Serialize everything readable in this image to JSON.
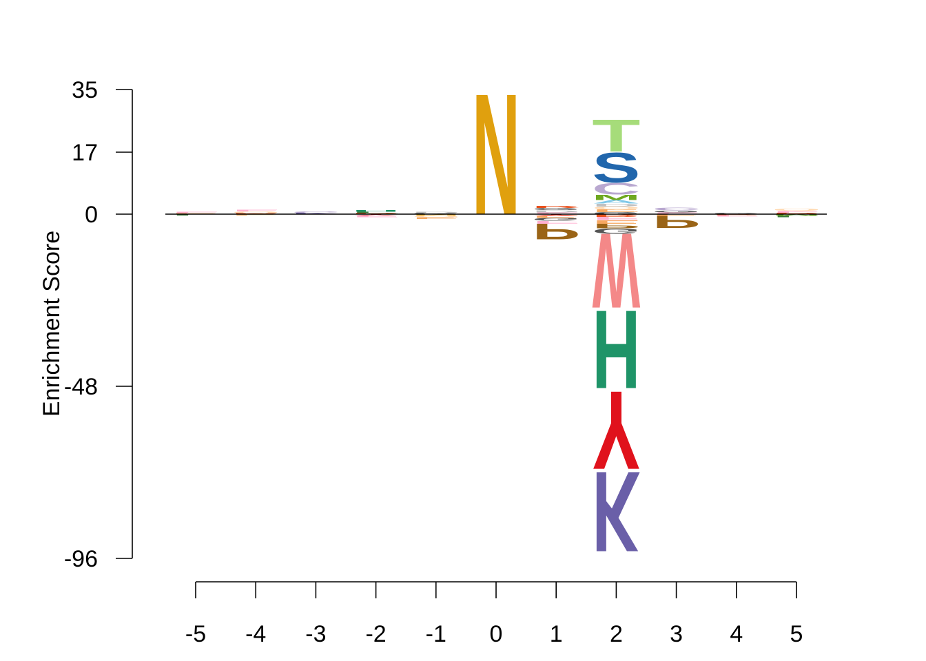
{
  "chart_data": {
    "type": "sequence-logo",
    "ylabel": "Enrichment Score",
    "xlabel": "",
    "y_ticks": [
      35,
      17,
      0,
      -48,
      -96
    ],
    "y_tick_labels": [
      "35",
      "17",
      "0",
      "-48",
      "-96"
    ],
    "ylim": [
      -96,
      35
    ],
    "x_positions": [
      -5,
      -4,
      -3,
      -2,
      -1,
      0,
      1,
      2,
      3,
      4,
      5
    ],
    "x_tick_labels": [
      "-5",
      "-4",
      "-3",
      "-2",
      "-1",
      "0",
      "1",
      "2",
      "3",
      "4",
      "5"
    ],
    "residue_colors": {
      "N": "#E0A00E",
      "T": "#A6DC7A",
      "S": "#2166AC",
      "C": "#B9A8D0",
      "M": "#6FA820",
      "W": "#F48888",
      "H": "#1F9468",
      "Y": "#E0121C",
      "K": "#6A5FA8",
      "P": "#9A6416",
      "E": "#F6A861",
      "G": "#555555",
      "F": "#FFB0D0",
      "R": "#E8501C",
      "A": "#7FC8E8",
      "L": "#3A7A3A",
      "D": "#C0C0C0",
      "Q": "#FFD9B0"
    },
    "positions": [
      {
        "pos": -5,
        "positive": [
          {
            "letter": "F",
            "value": 0.4
          },
          {
            "letter": "E",
            "value": 0.3
          }
        ],
        "negative": [
          {
            "letter": "L",
            "value": -0.4
          }
        ]
      },
      {
        "pos": -4,
        "positive": [
          {
            "letter": "Q",
            "value": 0.5
          },
          {
            "letter": "F",
            "value": 0.5
          },
          {
            "letter": "R",
            "value": 0.3
          }
        ],
        "negative": [
          {
            "letter": "E",
            "value": -0.4
          }
        ]
      },
      {
        "pos": -3,
        "positive": [
          {
            "letter": "C",
            "value": 0.5
          },
          {
            "letter": "K",
            "value": 0.3
          }
        ],
        "negative": []
      },
      {
        "pos": -2,
        "positive": [
          {
            "letter": "H",
            "value": 0.5
          },
          {
            "letter": "L",
            "value": 0.4
          },
          {
            "letter": "R",
            "value": 0.3
          }
        ],
        "negative": [
          {
            "letter": "F",
            "value": -0.5
          },
          {
            "letter": "Y",
            "value": -0.4
          }
        ]
      },
      {
        "pos": -1,
        "positive": [
          {
            "letter": "D",
            "value": 0.4
          },
          {
            "letter": "G",
            "value": 0.3
          }
        ],
        "negative": [
          {
            "letter": "Q",
            "value": -0.5
          },
          {
            "letter": "E",
            "value": -0.5
          },
          {
            "letter": "N",
            "value": -0.4
          }
        ]
      },
      {
        "pos": 0,
        "positive": [
          {
            "letter": "N",
            "value": 35
          }
        ],
        "negative": []
      },
      {
        "pos": 1,
        "positive": [
          {
            "letter": "D",
            "value": 0.6
          },
          {
            "letter": "G",
            "value": 0.6
          },
          {
            "letter": "F",
            "value": 0.5
          },
          {
            "letter": "R",
            "value": 0.6
          }
        ],
        "negative": [
          {
            "letter": "G",
            "value": -0.8
          },
          {
            "letter": "E",
            "value": -0.6
          },
          {
            "letter": "F",
            "value": -0.8
          },
          {
            "letter": "Y",
            "value": -0.5
          },
          {
            "letter": "P",
            "value": -4.5
          }
        ]
      },
      {
        "pos": 2,
        "positive": [
          {
            "letter": "T",
            "value": 9.5
          },
          {
            "letter": "S",
            "value": 8.5
          },
          {
            "letter": "C",
            "value": 3.3
          },
          {
            "letter": "M",
            "value": 1.5
          },
          {
            "letter": "A",
            "value": 1.0
          },
          {
            "letter": "Q",
            "value": 0.8
          },
          {
            "letter": "D",
            "value": 0.8
          },
          {
            "letter": "E",
            "value": 0.7
          },
          {
            "letter": "G",
            "value": 0.6
          }
        ],
        "negative": [
          {
            "letter": "F",
            "value": -0.9
          },
          {
            "letter": "E",
            "value": -1.0
          },
          {
            "letter": "R",
            "value": -0.8
          },
          {
            "letter": "P",
            "value": -1.3
          },
          {
            "letter": "G",
            "value": -1.5
          },
          {
            "letter": "W",
            "value": -21.5
          },
          {
            "letter": "H",
            "value": -22.5
          },
          {
            "letter": "Y",
            "value": -22.5
          },
          {
            "letter": "K",
            "value": -23.0
          }
        ]
      },
      {
        "pos": 3,
        "positive": [
          {
            "letter": "C",
            "value": 0.7
          },
          {
            "letter": "F",
            "value": 0.5
          },
          {
            "letter": "G",
            "value": 0.5
          }
        ],
        "negative": [
          {
            "letter": "E",
            "value": -0.5
          },
          {
            "letter": "P",
            "value": -3.5
          }
        ]
      },
      {
        "pos": 4,
        "positive": [
          {
            "letter": "G",
            "value": 0.3
          }
        ],
        "negative": [
          {
            "letter": "F",
            "value": -0.4
          },
          {
            "letter": "R",
            "value": -0.3
          }
        ]
      },
      {
        "pos": 5,
        "positive": [
          {
            "letter": "Q",
            "value": 0.6
          },
          {
            "letter": "F",
            "value": 0.5
          },
          {
            "letter": "R",
            "value": 0.4
          }
        ],
        "negative": [
          {
            "letter": "L",
            "value": -0.5
          },
          {
            "letter": "M",
            "value": -0.4
          }
        ]
      }
    ]
  }
}
